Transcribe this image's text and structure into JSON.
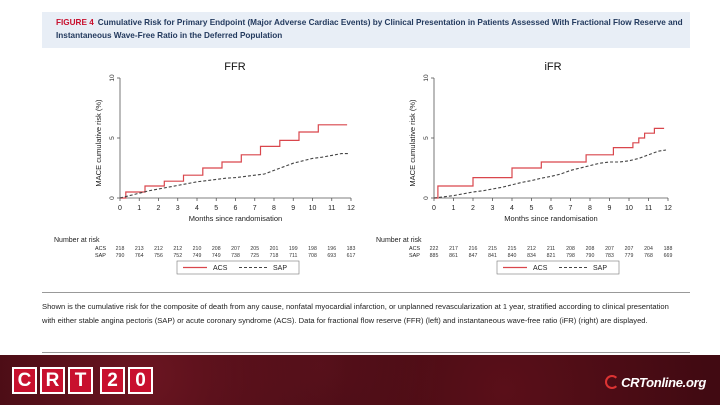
{
  "figure": {
    "label": "FIGURE 4",
    "title": "Cumulative Risk for Primary Endpoint (Major Adverse Cardiac Events) by Clinical Presentation in Patients Assessed With Fractional Flow Reserve and Instantaneous Wave-Free Ratio in the Deferred Population"
  },
  "caption": "Shown is the cumulative risk for the composite of death from any cause, nonfatal myocardial infarction, or unplanned revascularization at 1 year, stratified according to clinical presentation with either stable angina pectoris (SAP) or acute coronary syndrome (ACS). Data for fractional flow reserve (FFR) (left) and instantaneous wave-free ratio (iFR) (right) are displayed.",
  "footer": {
    "logo_letters": [
      "C",
      "R",
      "T",
      "2",
      "0"
    ],
    "site": "CRTonline.org"
  },
  "colors": {
    "acs": "#d9464c",
    "sap": "#444444"
  },
  "chart_data": [
    {
      "type": "line",
      "title": "FFR",
      "xlabel": "Months since randomisation",
      "ylabel": "MACE cumulative risk (%)",
      "xlim": [
        0,
        12
      ],
      "ylim": [
        0,
        10
      ],
      "xticks": [
        "0",
        "1",
        "2",
        "3",
        "4",
        "5",
        "6",
        "7",
        "8",
        "9",
        "10",
        "11",
        "12"
      ],
      "yticks": [
        "0",
        "5",
        "10"
      ],
      "series": [
        {
          "name": "ACS",
          "style": "solid",
          "color": "#d9464c",
          "x": [
            0,
            0.3,
            0.3,
            1.3,
            1.3,
            2.3,
            2.3,
            3.3,
            3.3,
            4.3,
            4.3,
            5.3,
            5.3,
            6.3,
            6.3,
            7.3,
            7.3,
            8.3,
            8.3,
            9.3,
            9.3,
            10.3,
            10.3,
            11.8
          ],
          "y": [
            0,
            0,
            0.5,
            0.5,
            1.0,
            1.0,
            1.4,
            1.4,
            1.9,
            1.9,
            2.5,
            2.5,
            3.0,
            3.0,
            3.6,
            3.6,
            4.3,
            4.3,
            4.8,
            4.8,
            5.5,
            5.5,
            6.1,
            6.1
          ]
        },
        {
          "name": "SAP",
          "style": "dashed",
          "color": "#444444",
          "x": [
            0,
            0.5,
            1,
            1.5,
            2,
            2.5,
            3,
            3.5,
            4,
            4.5,
            5,
            5.5,
            6,
            6.5,
            7,
            7.5,
            8,
            8.5,
            9,
            9.5,
            10,
            10.5,
            11,
            11.5,
            11.9
          ],
          "y": [
            0,
            0.2,
            0.4,
            0.6,
            0.75,
            0.9,
            1.05,
            1.2,
            1.35,
            1.45,
            1.55,
            1.65,
            1.7,
            1.8,
            1.9,
            2.0,
            2.3,
            2.6,
            2.9,
            3.1,
            3.3,
            3.4,
            3.55,
            3.7,
            3.7
          ]
        }
      ],
      "risk_table": {
        "heading": "Number at risk",
        "rows": [
          {
            "label": "ACS",
            "values": [
              "218",
              "213",
              "212",
              "212",
              "210",
              "208",
              "207",
              "205",
              "201",
              "199",
              "198",
              "196",
              "183"
            ]
          },
          {
            "label": "SAP",
            "values": [
              "790",
              "764",
              "756",
              "752",
              "749",
              "749",
              "738",
              "725",
              "718",
              "711",
              "708",
              "693",
              "617"
            ]
          }
        ]
      },
      "legend": [
        {
          "label": "ACS"
        },
        {
          "label": "SAP"
        }
      ]
    },
    {
      "type": "line",
      "title": "iFR",
      "xlabel": "Months since randomisation",
      "ylabel": "MACE cumulative risk (%)",
      "xlim": [
        0,
        12
      ],
      "ylim": [
        0,
        10
      ],
      "xticks": [
        "0",
        "1",
        "2",
        "3",
        "4",
        "5",
        "6",
        "7",
        "8",
        "9",
        "10",
        "11",
        "12"
      ],
      "yticks": [
        "0",
        "5",
        "10"
      ],
      "series": [
        {
          "name": "ACS",
          "style": "solid",
          "color": "#d9464c",
          "x": [
            0,
            0.2,
            0.2,
            2,
            2,
            4,
            4,
            5.5,
            5.5,
            7.8,
            7.8,
            9.2,
            9.2,
            10.2,
            10.2,
            10.5,
            10.5,
            10.8,
            10.8,
            11.3,
            11.3,
            11.8
          ],
          "y": [
            0,
            0,
            1.0,
            1.0,
            1.7,
            1.7,
            2.5,
            2.5,
            3.0,
            3.0,
            3.6,
            3.6,
            4.2,
            4.2,
            4.6,
            4.6,
            5.0,
            5.0,
            5.4,
            5.4,
            5.8,
            5.8
          ]
        },
        {
          "name": "SAP",
          "style": "dashed",
          "color": "#444444",
          "x": [
            0,
            0.5,
            1,
            1.5,
            2,
            2.5,
            3,
            3.5,
            4,
            4.5,
            5,
            5.5,
            6,
            6.5,
            7,
            7.5,
            8,
            8.5,
            9,
            9.5,
            10,
            10.5,
            11,
            11.5,
            11.9
          ],
          "y": [
            0,
            0.1,
            0.2,
            0.35,
            0.5,
            0.6,
            0.75,
            0.9,
            1.1,
            1.3,
            1.45,
            1.65,
            1.8,
            2.0,
            2.3,
            2.5,
            2.7,
            2.9,
            3.0,
            3.0,
            3.1,
            3.3,
            3.6,
            3.9,
            4.0
          ]
        }
      ],
      "risk_table": {
        "heading": "Number at risk",
        "rows": [
          {
            "label": "ACS",
            "values": [
              "222",
              "217",
              "216",
              "215",
              "215",
              "212",
              "211",
              "208",
              "208",
              "207",
              "207",
              "204",
              "188"
            ]
          },
          {
            "label": "SAP",
            "values": [
              "885",
              "861",
              "847",
              "841",
              "840",
              "834",
              "821",
              "798",
              "790",
              "783",
              "779",
              "768",
              "669"
            ]
          }
        ]
      },
      "legend": [
        {
          "label": "ACS"
        },
        {
          "label": "SAP"
        }
      ]
    }
  ]
}
